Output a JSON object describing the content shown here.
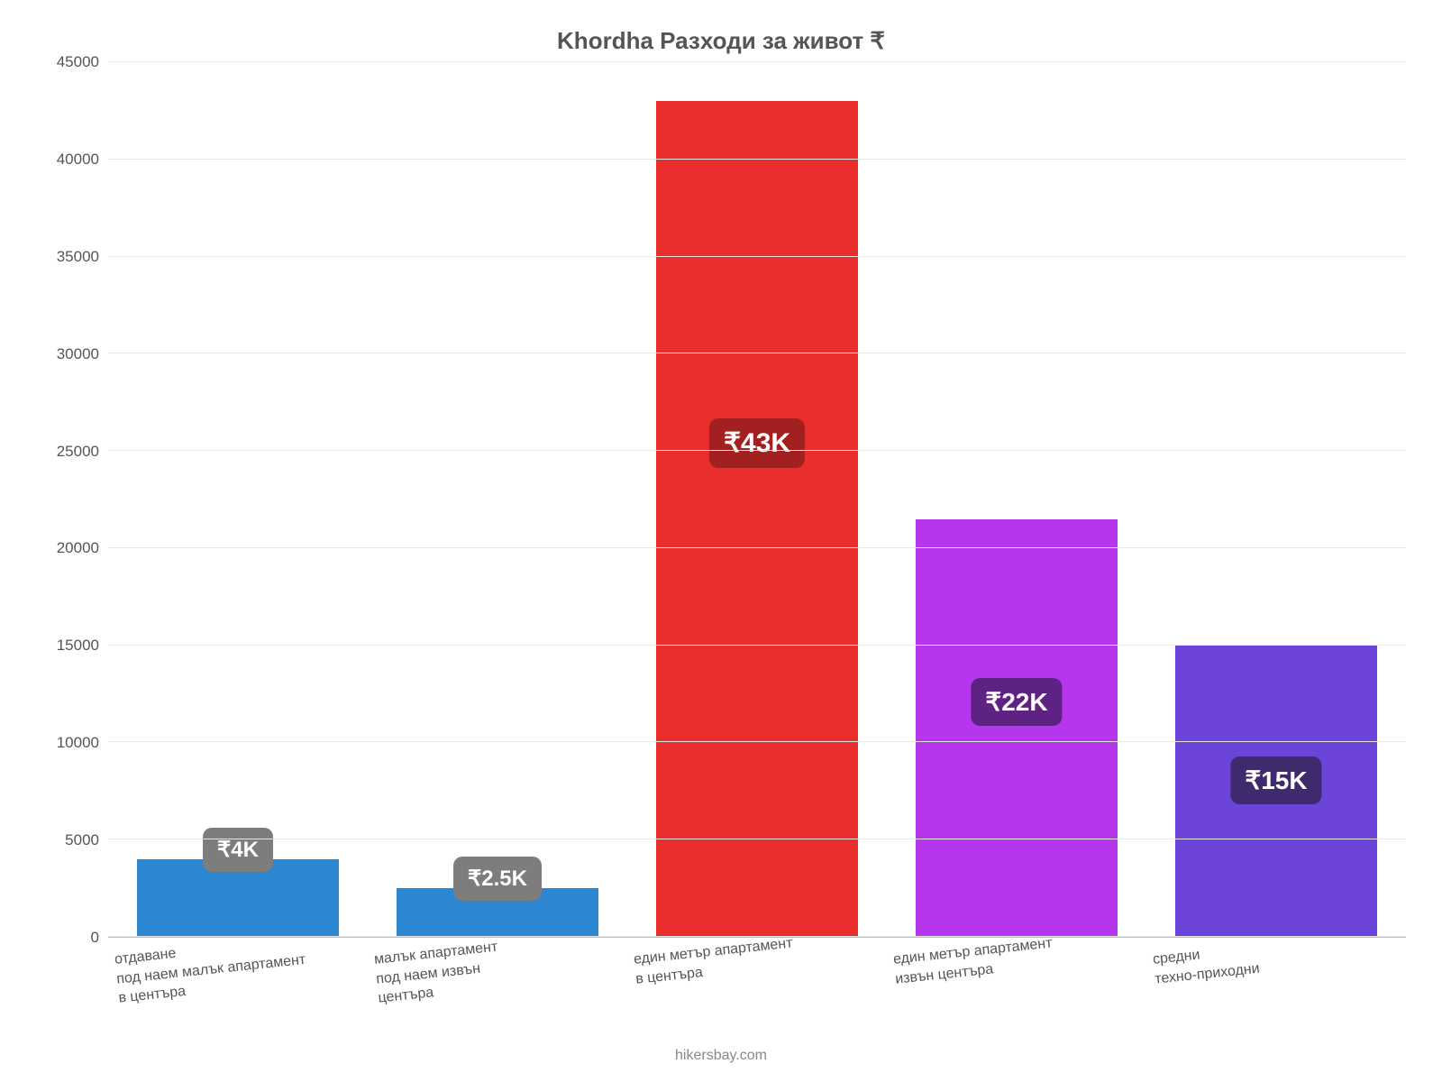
{
  "chart": {
    "type": "bar",
    "title": "Khordha Разходи за живот ₹",
    "title_fontsize": 26,
    "title_color": "#555555",
    "background_color": "#ffffff",
    "grid_color": "#e6e6e6",
    "axis_color": "#bbbbbb",
    "tick_color": "#555555",
    "tick_fontsize": 17,
    "xlabel_fontsize": 16,
    "xlabel_color": "#555555",
    "xlabel_rotation_deg": -6,
    "bar_width_pct": 78,
    "ylim": [
      0,
      45000
    ],
    "yticks": [
      0,
      5000,
      10000,
      15000,
      20000,
      25000,
      30000,
      35000,
      40000,
      45000
    ],
    "categories": [
      "отдаване\nпод наем малък апартамент\nв центъра",
      "малък апартамент\nпод наем извън\nцентъра",
      "един метър апартамент\nв центъра",
      "един метър апартамент\nизвън центъра",
      "средни\nтехно-приходни"
    ],
    "values": [
      4000,
      2500,
      43000,
      21500,
      15000
    ],
    "value_labels": [
      "₹4K",
      "₹2.5K",
      "₹43K",
      "₹22K",
      "₹15K"
    ],
    "bar_colors": [
      "#2d86d2",
      "#2d86d2",
      "#ea2e2e",
      "#b536ec",
      "#6c44d9"
    ],
    "badge_colors": [
      "#7d7d7d",
      "#7d7d7d",
      "#a32020",
      "#5e2285",
      "#3e2a6d"
    ],
    "badge_fontsize": [
      24,
      24,
      30,
      28,
      28
    ],
    "badge_text_color": "#ffffff",
    "footer": "hikersbay.com",
    "footer_color": "#888888",
    "footer_fontsize": 16
  }
}
